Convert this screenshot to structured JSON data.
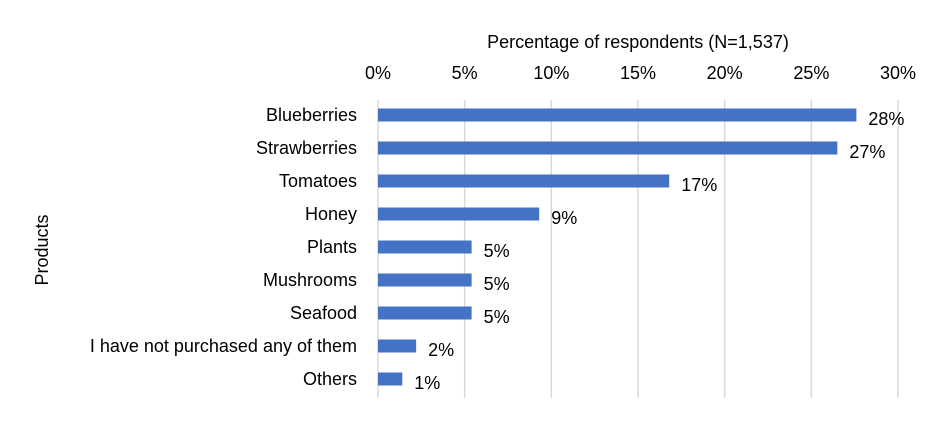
{
  "chart_data": {
    "type": "bar",
    "orientation": "horizontal",
    "title": "",
    "xlabel": "Percentage of respondents (N=1,537)",
    "ylabel": "Products",
    "xlim": [
      0,
      30
    ],
    "x_ticks": [
      "0%",
      "5%",
      "10%",
      "15%",
      "20%",
      "25%",
      "30%"
    ],
    "x_axis_position": "top",
    "grid": true,
    "bar_color": "#4472C4",
    "grid_color": "#D9D9D9",
    "categories": [
      "Blueberries",
      "Strawberries",
      "Tomatoes",
      "Honey",
      "Plants",
      "Mushrooms",
      "Seafood",
      "I have not purchased any of them",
      "Others"
    ],
    "values": [
      27.6,
      26.5,
      16.8,
      9.3,
      5.4,
      5.4,
      5.4,
      2.2,
      1.4
    ],
    "data_labels": [
      "28%",
      "27%",
      "17%",
      "9%",
      "5%",
      "5%",
      "5%",
      "2%",
      "1%"
    ]
  }
}
